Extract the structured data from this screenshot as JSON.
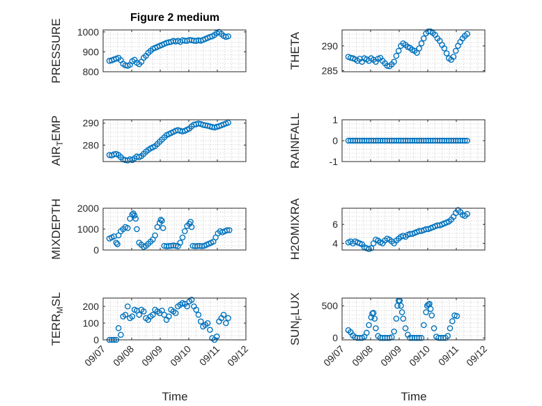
{
  "figure_title": "Figure 2 medium",
  "x_axis_label": "Time",
  "x_tick_labels": [
    "09/07",
    "09/08",
    "09/09",
    "09/10",
    "09/11",
    "09/12"
  ],
  "colors": {
    "marker": "#0072bd",
    "axis": "#262626",
    "grid": "#b0b0b0",
    "background": "#ffffff"
  },
  "chart_data": [
    {
      "type": "scatter",
      "id": "pressure",
      "title": "Figure 2 medium",
      "ylabel": "PRESSURE",
      "xlim": [
        0,
        5
      ],
      "ylim": [
        800,
        1010
      ],
      "yticks": [
        800,
        900,
        1000
      ],
      "ytick_labels": [
        "800",
        "900",
        "1000"
      ],
      "xtick_labels": [],
      "grid": true,
      "x": [
        0.22,
        0.3,
        0.38,
        0.46,
        0.54,
        0.62,
        0.7,
        0.78,
        0.86,
        0.94,
        1.02,
        1.1,
        1.18,
        1.26,
        1.34,
        1.42,
        1.5,
        1.58,
        1.66,
        1.74,
        1.82,
        1.9,
        1.98,
        2.06,
        2.14,
        2.22,
        2.3,
        2.38,
        2.46,
        2.54,
        2.62,
        2.7,
        2.78,
        2.86,
        2.94,
        3.02,
        3.1,
        3.18,
        3.26,
        3.34,
        3.42,
        3.5,
        3.58,
        3.66,
        3.74,
        3.82,
        3.9,
        3.98,
        4.06,
        4.14,
        4.22,
        4.3,
        4.38
      ],
      "y": [
        855,
        857,
        862,
        866,
        870,
        858,
        840,
        832,
        830,
        835,
        853,
        860,
        845,
        838,
        850,
        870,
        880,
        895,
        905,
        915,
        920,
        925,
        930,
        935,
        940,
        945,
        948,
        950,
        955,
        952,
        955,
        950,
        958,
        956,
        955,
        960,
        958,
        956,
        955,
        958,
        956,
        960,
        965,
        970,
        975,
        978,
        985,
        995,
        1000,
        990,
        980,
        975,
        978
      ]
    },
    {
      "type": "scatter",
      "id": "theta",
      "ylabel": "THETA",
      "xlim": [
        0,
        5
      ],
      "ylim": [
        284.8,
        293.2
      ],
      "yticks": [
        285,
        290
      ],
      "ytick_labels": [
        "285",
        "290"
      ],
      "xtick_labels": [],
      "grid": true,
      "x": [
        0.22,
        0.3,
        0.38,
        0.46,
        0.54,
        0.62,
        0.7,
        0.78,
        0.86,
        0.94,
        1.02,
        1.1,
        1.18,
        1.26,
        1.34,
        1.42,
        1.5,
        1.58,
        1.66,
        1.74,
        1.82,
        1.9,
        1.98,
        2.06,
        2.14,
        2.22,
        2.3,
        2.38,
        2.46,
        2.54,
        2.62,
        2.7,
        2.78,
        2.86,
        2.94,
        3.02,
        3.1,
        3.18,
        3.26,
        3.34,
        3.42,
        3.5,
        3.58,
        3.66,
        3.74,
        3.82,
        3.9,
        3.98,
        4.06,
        4.14,
        4.22,
        4.3,
        4.38
      ],
      "y": [
        287.8,
        287.6,
        287.5,
        287.3,
        287.0,
        287.4,
        286.8,
        287.5,
        287.3,
        287.0,
        287.5,
        287.2,
        286.8,
        287.4,
        287.6,
        287.0,
        286.5,
        286.0,
        285.9,
        286.3,
        286.8,
        288.0,
        289.0,
        290.0,
        290.5,
        290.2,
        289.8,
        289.6,
        289.2,
        289.0,
        288.6,
        289.5,
        290.5,
        291.5,
        292.5,
        292.9,
        292.9,
        292.6,
        292.2,
        291.5,
        291.0,
        290.2,
        289.5,
        288.5,
        287.5,
        287.2,
        287.8,
        289.0,
        290.0,
        290.8,
        291.5,
        292.0,
        292.4
      ]
    },
    {
      "type": "scatter",
      "id": "air_temp",
      "ylabel": "AIR_TEMP",
      "xlim": [
        0,
        5
      ],
      "ylim": [
        272.5,
        291.5
      ],
      "yticks": [
        280,
        290
      ],
      "ytick_labels": [
        "280",
        "290"
      ],
      "xtick_labels": [],
      "grid": true,
      "x": [
        0.22,
        0.3,
        0.38,
        0.46,
        0.54,
        0.62,
        0.7,
        0.78,
        0.86,
        0.94,
        1.02,
        1.1,
        1.18,
        1.26,
        1.34,
        1.42,
        1.5,
        1.58,
        1.66,
        1.74,
        1.82,
        1.9,
        1.98,
        2.06,
        2.14,
        2.22,
        2.3,
        2.38,
        2.46,
        2.54,
        2.62,
        2.7,
        2.78,
        2.86,
        2.94,
        3.02,
        3.1,
        3.18,
        3.26,
        3.34,
        3.42,
        3.5,
        3.58,
        3.66,
        3.74,
        3.82,
        3.9,
        3.98,
        4.06,
        4.14,
        4.22,
        4.3,
        4.38
      ],
      "y": [
        275.5,
        275.3,
        275.8,
        276.0,
        275.5,
        274.5,
        273.5,
        273.2,
        273.0,
        273.5,
        273.2,
        274.0,
        274.8,
        274.5,
        275.0,
        276.0,
        277.0,
        277.8,
        278.5,
        279.0,
        279.5,
        280.5,
        281.5,
        282.5,
        283.5,
        284.5,
        285.0,
        285.5,
        286.0,
        286.5,
        286.8,
        286.5,
        286.2,
        286.5,
        287.0,
        287.5,
        288.5,
        289.3,
        289.5,
        289.8,
        289.6,
        289.2,
        289.0,
        288.8,
        288.5,
        288.2,
        288.0,
        288.3,
        288.6,
        289.0,
        289.4,
        289.8,
        290.2
      ]
    },
    {
      "type": "scatter",
      "id": "rainfall",
      "ylabel": "RAINFALL",
      "xlim": [
        0,
        5
      ],
      "ylim": [
        -1,
        1
      ],
      "yticks": [
        -1,
        0,
        1
      ],
      "ytick_labels": [
        "-1",
        "0",
        "1"
      ],
      "xtick_labels": [],
      "grid": true,
      "x": [
        0.22,
        0.3,
        0.38,
        0.46,
        0.54,
        0.62,
        0.7,
        0.78,
        0.86,
        0.94,
        1.02,
        1.1,
        1.18,
        1.26,
        1.34,
        1.42,
        1.5,
        1.58,
        1.66,
        1.74,
        1.82,
        1.9,
        1.98,
        2.06,
        2.14,
        2.22,
        2.3,
        2.38,
        2.46,
        2.54,
        2.62,
        2.7,
        2.78,
        2.86,
        2.94,
        3.02,
        3.1,
        3.18,
        3.26,
        3.34,
        3.42,
        3.5,
        3.58,
        3.66,
        3.74,
        3.82,
        3.9,
        3.98,
        4.06,
        4.14,
        4.22,
        4.3,
        4.38
      ],
      "y": [
        0,
        0,
        0,
        0,
        0,
        0,
        0,
        0,
        0,
        0,
        0,
        0,
        0,
        0,
        0,
        0,
        0,
        0,
        0,
        0,
        0,
        0,
        0,
        0,
        0,
        0,
        0,
        0,
        0,
        0,
        0,
        0,
        0,
        0,
        0,
        0,
        0,
        0,
        0,
        0,
        0,
        0,
        0,
        0,
        0,
        0,
        0,
        0,
        0,
        0,
        0,
        0,
        0
      ]
    },
    {
      "type": "scatter",
      "id": "mixdepth",
      "ylabel": "MIXDEPTH",
      "xlim": [
        0,
        5
      ],
      "ylim": [
        0,
        2000
      ],
      "yticks": [
        0,
        1000,
        2000
      ],
      "ytick_labels": [
        "0",
        "1000",
        "2000"
      ],
      "xtick_labels": [],
      "grid": true,
      "x": [
        0.22,
        0.3,
        0.38,
        0.46,
        0.5,
        0.54,
        0.62,
        0.7,
        0.78,
        0.86,
        0.94,
        1.02,
        1.06,
        1.1,
        1.14,
        1.18,
        1.26,
        1.34,
        1.42,
        1.5,
        1.58,
        1.66,
        1.74,
        1.82,
        1.9,
        1.98,
        2.02,
        2.06,
        2.1,
        2.14,
        2.22,
        2.3,
        2.38,
        2.46,
        2.54,
        2.62,
        2.7,
        2.78,
        2.86,
        2.94,
        3.02,
        3.06,
        3.1,
        3.14,
        3.22,
        3.3,
        3.38,
        3.46,
        3.54,
        3.62,
        3.7,
        3.78,
        3.86,
        3.94,
        4.02,
        4.1,
        4.18,
        4.26,
        4.34,
        4.42
      ],
      "y": [
        550,
        600,
        650,
        350,
        280,
        700,
        900,
        1000,
        1100,
        1050,
        1500,
        1700,
        1750,
        1650,
        1500,
        1000,
        350,
        250,
        150,
        200,
        300,
        400,
        500,
        700,
        1100,
        1300,
        1450,
        1400,
        1050,
        200,
        180,
        190,
        200,
        220,
        200,
        180,
        350,
        600,
        900,
        1150,
        1250,
        1350,
        1100,
        200,
        180,
        190,
        200,
        180,
        200,
        250,
        300,
        350,
        400,
        600,
        800,
        900,
        850,
        900,
        950,
        950
      ]
    },
    {
      "type": "scatter",
      "id": "h2omixra",
      "ylabel": "H2OMIXRA",
      "xlim": [
        0,
        5
      ],
      "ylim": [
        3.3,
        7.7
      ],
      "yticks": [
        4,
        6
      ],
      "ytick_labels": [
        "4",
        "6"
      ],
      "xtick_labels": [],
      "grid": true,
      "x": [
        0.22,
        0.3,
        0.38,
        0.46,
        0.54,
        0.62,
        0.7,
        0.78,
        0.86,
        0.94,
        1.02,
        1.1,
        1.18,
        1.26,
        1.34,
        1.42,
        1.5,
        1.58,
        1.66,
        1.74,
        1.82,
        1.9,
        1.98,
        2.06,
        2.14,
        2.22,
        2.3,
        2.38,
        2.46,
        2.54,
        2.62,
        2.7,
        2.78,
        2.86,
        2.94,
        3.02,
        3.1,
        3.18,
        3.26,
        3.34,
        3.42,
        3.5,
        3.58,
        3.66,
        3.74,
        3.82,
        3.9,
        3.98,
        4.06,
        4.14,
        4.22,
        4.3,
        4.38
      ],
      "y": [
        4.1,
        4.2,
        4.0,
        4.2,
        4.1,
        4.0,
        3.9,
        3.6,
        3.5,
        3.4,
        3.5,
        4.0,
        4.4,
        4.3,
        4.1,
        4.0,
        4.3,
        4.5,
        4.4,
        4.2,
        4.0,
        4.3,
        4.5,
        4.7,
        4.8,
        4.7,
        4.9,
        5.0,
        5.0,
        5.1,
        5.2,
        5.3,
        5.3,
        5.4,
        5.5,
        5.5,
        5.6,
        5.7,
        5.8,
        5.9,
        5.9,
        6.0,
        6.1,
        6.2,
        6.3,
        6.5,
        6.8,
        7.2,
        7.5,
        7.3,
        7.0,
        6.9,
        7.1
      ]
    },
    {
      "type": "scatter",
      "id": "terr_msl",
      "ylabel": "TERR_MSL",
      "xlim": [
        0,
        5
      ],
      "ylim": [
        0,
        250
      ],
      "yticks": [
        0,
        100,
        200
      ],
      "ytick_labels": [
        "0",
        "100",
        "200"
      ],
      "xtick_labels": [
        "09/07",
        "09/08",
        "09/09",
        "09/10",
        "09/11",
        "09/12"
      ],
      "grid": true,
      "x": [
        0.22,
        0.3,
        0.38,
        0.46,
        0.54,
        0.62,
        0.7,
        0.78,
        0.86,
        0.94,
        1.02,
        1.1,
        1.18,
        1.26,
        1.34,
        1.42,
        1.5,
        1.58,
        1.66,
        1.74,
        1.82,
        1.9,
        1.98,
        2.06,
        2.14,
        2.22,
        2.3,
        2.38,
        2.46,
        2.54,
        2.62,
        2.7,
        2.78,
        2.86,
        2.94,
        3.02,
        3.1,
        3.18,
        3.26,
        3.34,
        3.42,
        3.5,
        3.58,
        3.66,
        3.74,
        3.82,
        3.9,
        3.98,
        4.06,
        4.14,
        4.22,
        4.3,
        4.38
      ],
      "y": [
        0,
        0,
        0,
        0,
        70,
        30,
        140,
        150,
        200,
        130,
        140,
        180,
        175,
        150,
        180,
        170,
        130,
        120,
        140,
        150,
        180,
        170,
        160,
        175,
        150,
        120,
        140,
        180,
        170,
        160,
        200,
        210,
        220,
        215,
        200,
        230,
        240,
        200,
        180,
        150,
        110,
        80,
        90,
        100,
        60,
        10,
        0,
        20,
        110,
        130,
        150,
        100,
        130
      ]
    },
    {
      "type": "scatter",
      "id": "sun_flux",
      "ylabel": "SUN_FLUX",
      "xlim": [
        0,
        5
      ],
      "ylim": [
        -30,
        620
      ],
      "yticks": [
        0,
        500
      ],
      "ytick_labels": [
        "0",
        "500"
      ],
      "xtick_labels": [
        "09/07",
        "09/08",
        "09/09",
        "09/10",
        "09/11",
        "09/12"
      ],
      "grid": true,
      "x": [
        0.22,
        0.3,
        0.38,
        0.46,
        0.54,
        0.62,
        0.7,
        0.78,
        0.86,
        0.94,
        1.02,
        1.06,
        1.1,
        1.14,
        1.18,
        1.26,
        1.34,
        1.42,
        1.5,
        1.58,
        1.66,
        1.74,
        1.82,
        1.9,
        1.94,
        1.98,
        2.02,
        2.06,
        2.1,
        2.14,
        2.22,
        2.3,
        2.38,
        2.46,
        2.54,
        2.62,
        2.7,
        2.78,
        2.86,
        2.94,
        2.98,
        3.02,
        3.06,
        3.1,
        3.14,
        3.22,
        3.3,
        3.38,
        3.46,
        3.54,
        3.62,
        3.7,
        3.78,
        3.86,
        3.94,
        4.02
      ],
      "y": [
        120,
        90,
        40,
        10,
        0,
        0,
        0,
        20,
        80,
        200,
        320,
        380,
        390,
        300,
        150,
        30,
        0,
        0,
        0,
        0,
        0,
        10,
        100,
        300,
        500,
        580,
        580,
        500,
        400,
        300,
        150,
        50,
        0,
        0,
        0,
        0,
        0,
        0,
        200,
        400,
        500,
        520,
        530,
        450,
        350,
        150,
        20,
        0,
        0,
        0,
        0,
        30,
        150,
        260,
        350,
        340
      ]
    }
  ]
}
